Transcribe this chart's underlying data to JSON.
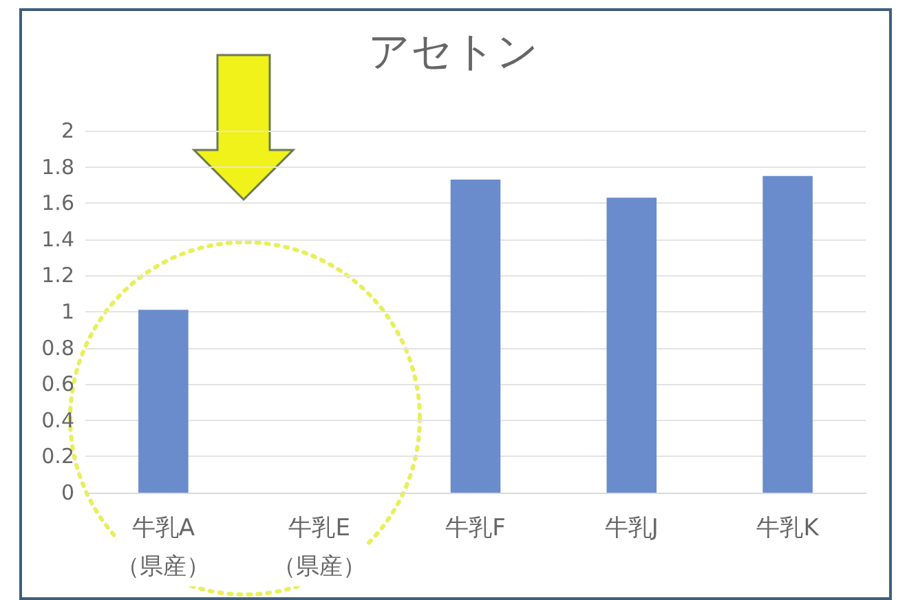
{
  "chart_data": {
    "type": "bar",
    "title": "アセトン",
    "categories": [
      "牛乳A\n（県産）",
      "牛乳E\n（県産）",
      "牛乳F",
      "牛乳J",
      "牛乳K"
    ],
    "values": [
      1.01,
      0,
      1.73,
      1.63,
      1.75
    ],
    "color": "#6a8ccc",
    "ylim": [
      0,
      2
    ],
    "yticks": [
      0,
      0.2,
      0.4,
      0.6,
      0.8,
      1,
      1.2,
      1.4,
      1.6,
      1.8,
      2
    ],
    "grid": "y"
  }
}
